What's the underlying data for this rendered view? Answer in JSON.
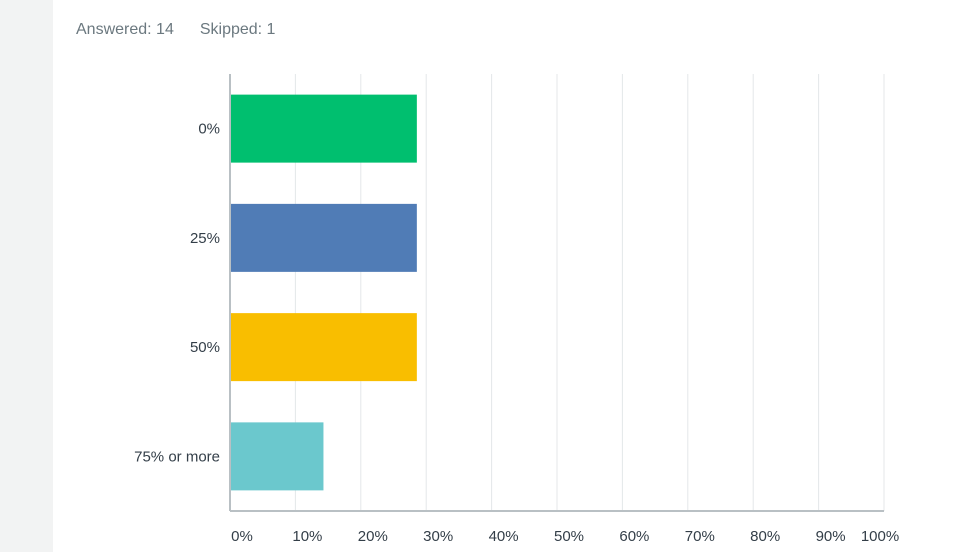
{
  "summary": {
    "answered": "Answered: 14",
    "skipped": "Skipped: 1"
  },
  "chart_data": {
    "type": "bar",
    "orientation": "horizontal",
    "categories": [
      "0%",
      "25%",
      "50%",
      "75% or more"
    ],
    "values": [
      28.57,
      28.57,
      28.57,
      14.29
    ],
    "colors": [
      "#00bf6f",
      "#507cb6",
      "#f9be00",
      "#6bc8cd"
    ],
    "xlim": [
      0,
      100
    ],
    "xticks": [
      "0%",
      "10%",
      "20%",
      "30%",
      "40%",
      "50%",
      "60%",
      "70%",
      "80%",
      "90%",
      "100%"
    ],
    "grid": true,
    "title": "",
    "xlabel": "",
    "ylabel": ""
  }
}
